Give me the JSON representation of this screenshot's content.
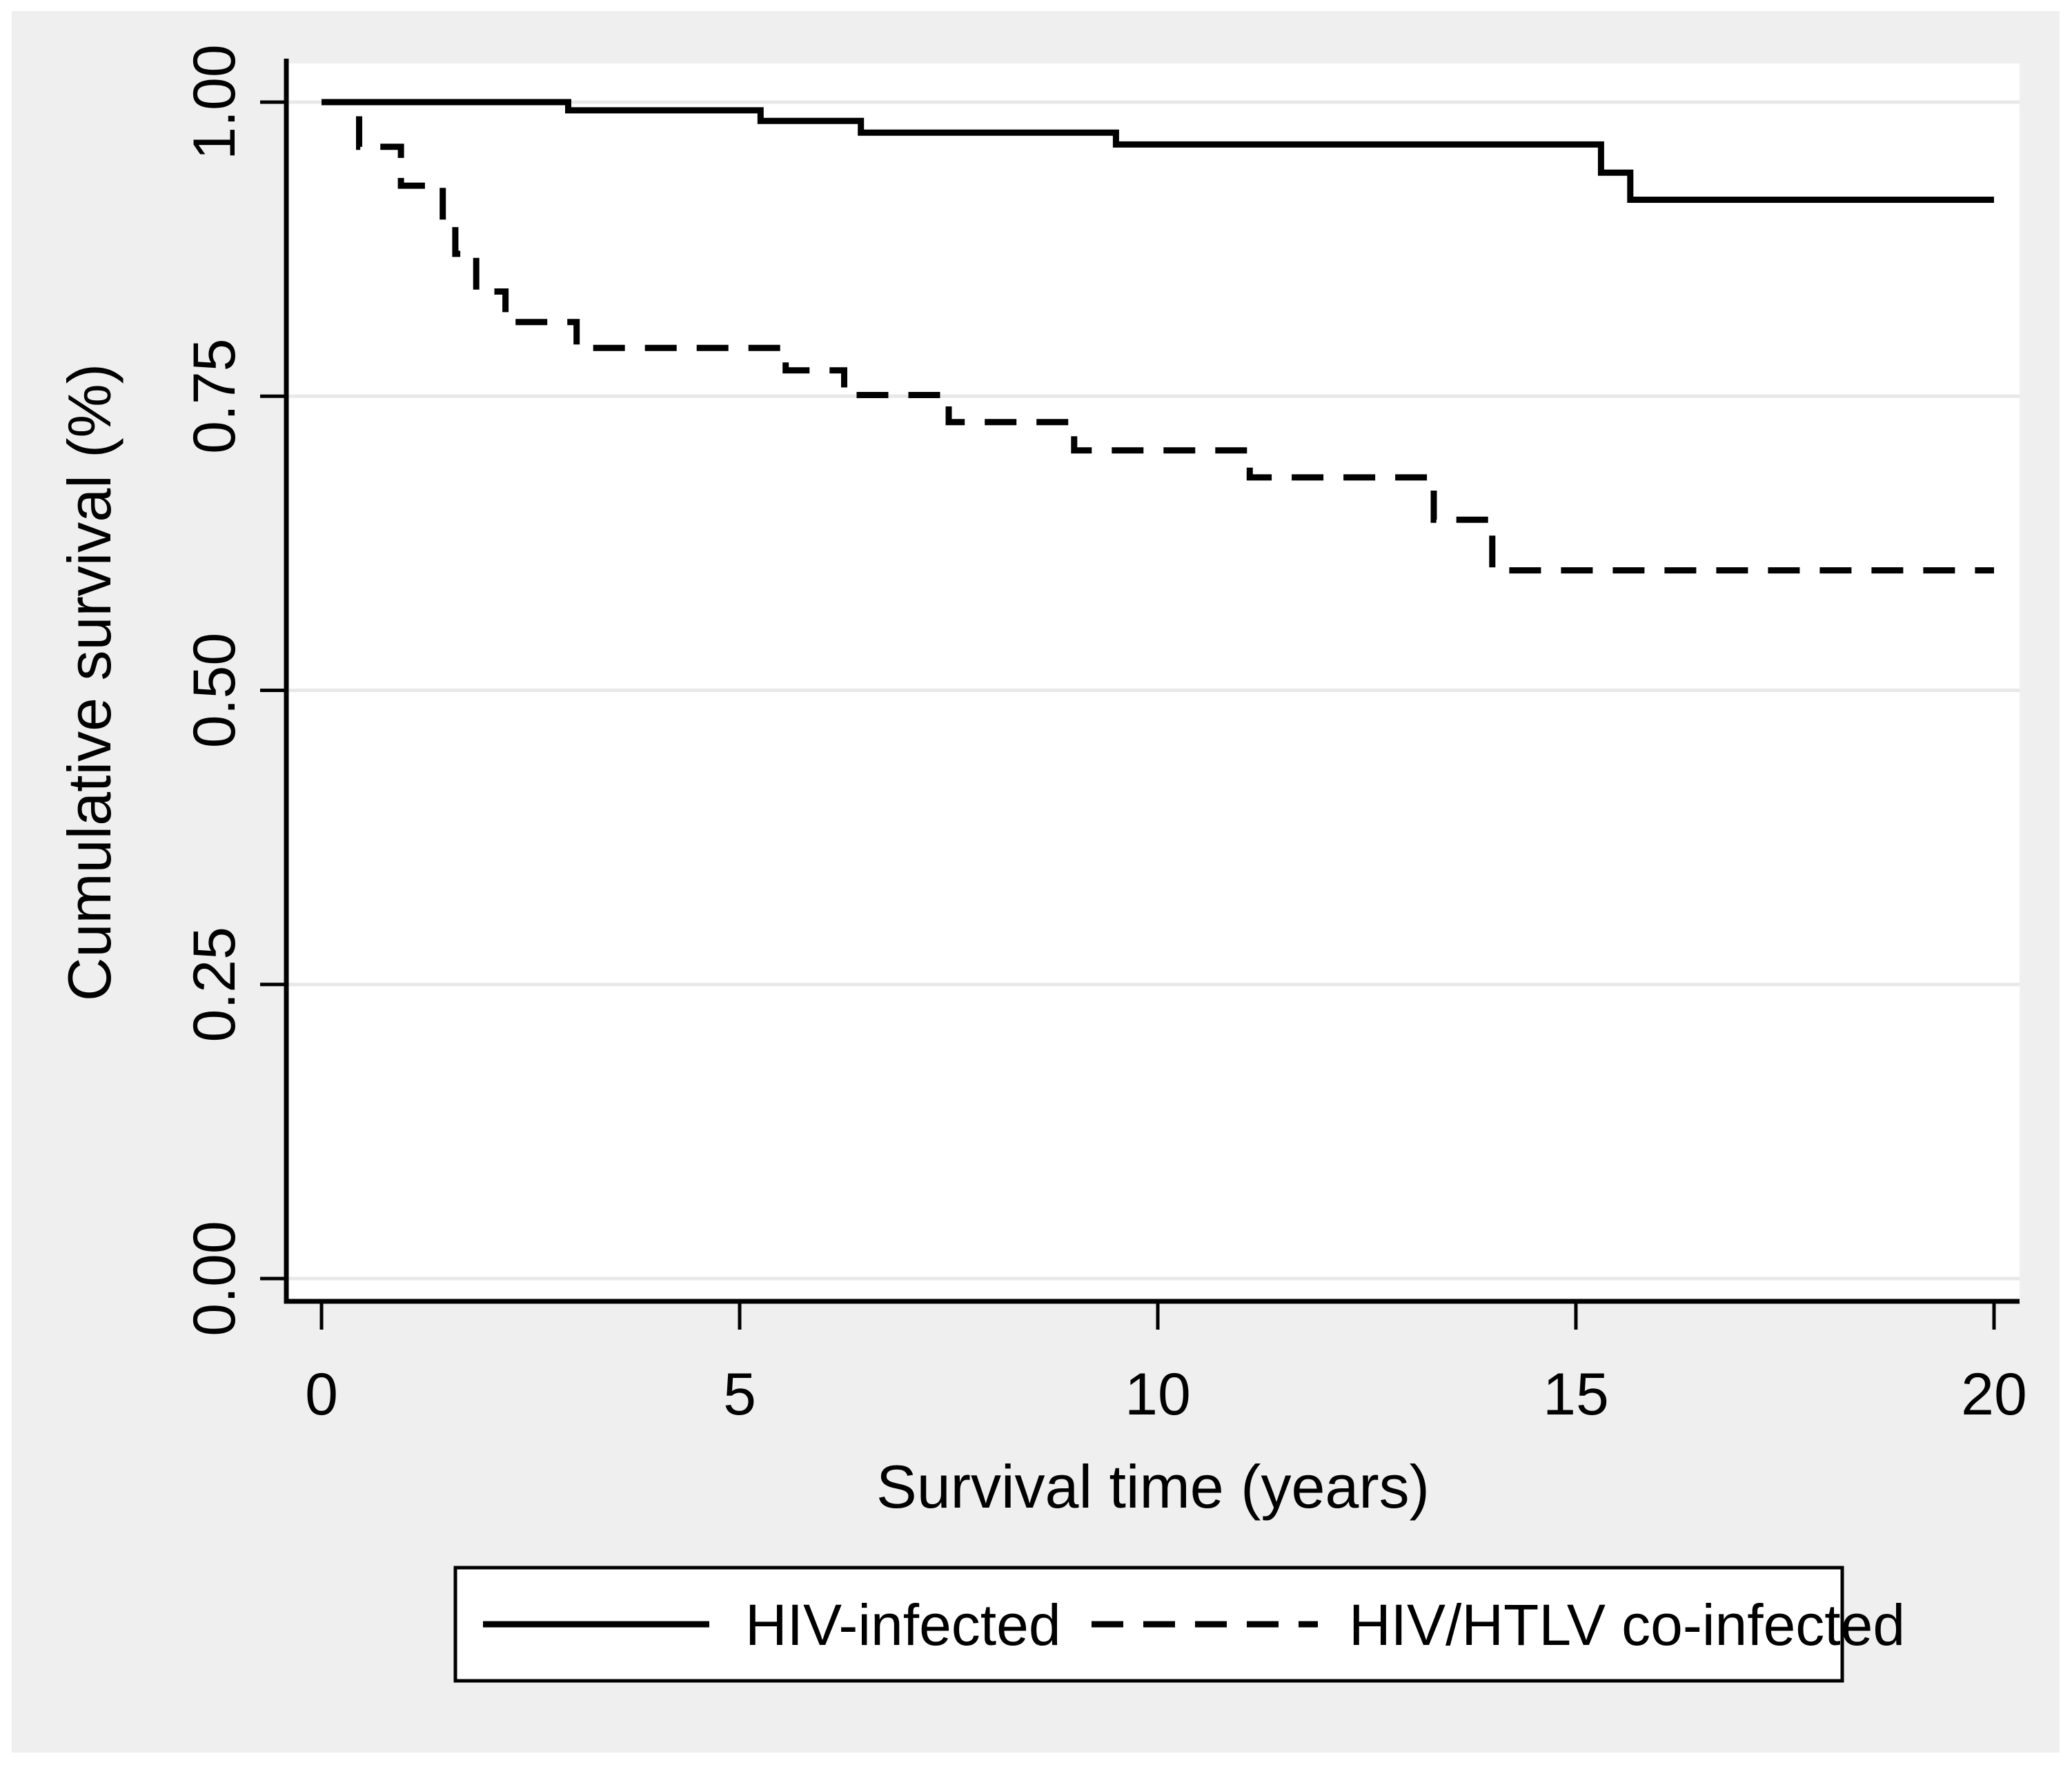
{
  "figure": {
    "panel_background": "#efefef",
    "plot_background": "#ffffff",
    "grid_color": "#e8e8e8",
    "axis_color": "#000000",
    "line_color": "#000000"
  },
  "chart_data": {
    "type": "line",
    "subtype": "kaplan-meier-step",
    "title": "",
    "xlabel": "Survival time (years)",
    "ylabel": "Cumulative survival (%)",
    "xlim": [
      0,
      20
    ],
    "ylim": [
      0.0,
      1.0
    ],
    "x_ticks": [
      "0",
      "5",
      "10",
      "15",
      "20"
    ],
    "x_tick_values": [
      0,
      5,
      10,
      15,
      20
    ],
    "y_ticks": [
      "0.00",
      "0.25",
      "0.50",
      "0.75",
      "1.00"
    ],
    "y_tick_values": [
      0.0,
      0.25,
      0.5,
      0.75,
      1.0
    ],
    "grid": "horizontal",
    "legend_position": "bottom",
    "series": [
      {
        "name": "HIV-infected",
        "style": "solid",
        "points": [
          [
            0,
            1.0
          ],
          [
            2.95,
            0.993
          ],
          [
            5.25,
            0.984
          ],
          [
            6.45,
            0.974
          ],
          [
            9.5,
            0.964
          ],
          [
            15.3,
            0.94
          ],
          [
            15.65,
            0.917
          ],
          [
            20,
            0.917
          ]
        ]
      },
      {
        "name": "HIV/HTLV co-infected",
        "style": "dashed",
        "points": [
          [
            0,
            1.0
          ],
          [
            0.45,
            0.962
          ],
          [
            0.95,
            0.929
          ],
          [
            1.45,
            0.897
          ],
          [
            1.6,
            0.871
          ],
          [
            1.85,
            0.839
          ],
          [
            2.2,
            0.813
          ],
          [
            3.05,
            0.791
          ],
          [
            5.55,
            0.772
          ],
          [
            6.25,
            0.751
          ],
          [
            7.5,
            0.728
          ],
          [
            9.0,
            0.704
          ],
          [
            11.1,
            0.681
          ],
          [
            13.3,
            0.645
          ],
          [
            14.0,
            0.602
          ],
          [
            20,
            0.602
          ]
        ]
      }
    ]
  },
  "legend": {
    "items": [
      {
        "label": "HIV-infected",
        "line": "solid"
      },
      {
        "label": "HIV/HTLV co-infected",
        "line": "dashed"
      }
    ]
  }
}
